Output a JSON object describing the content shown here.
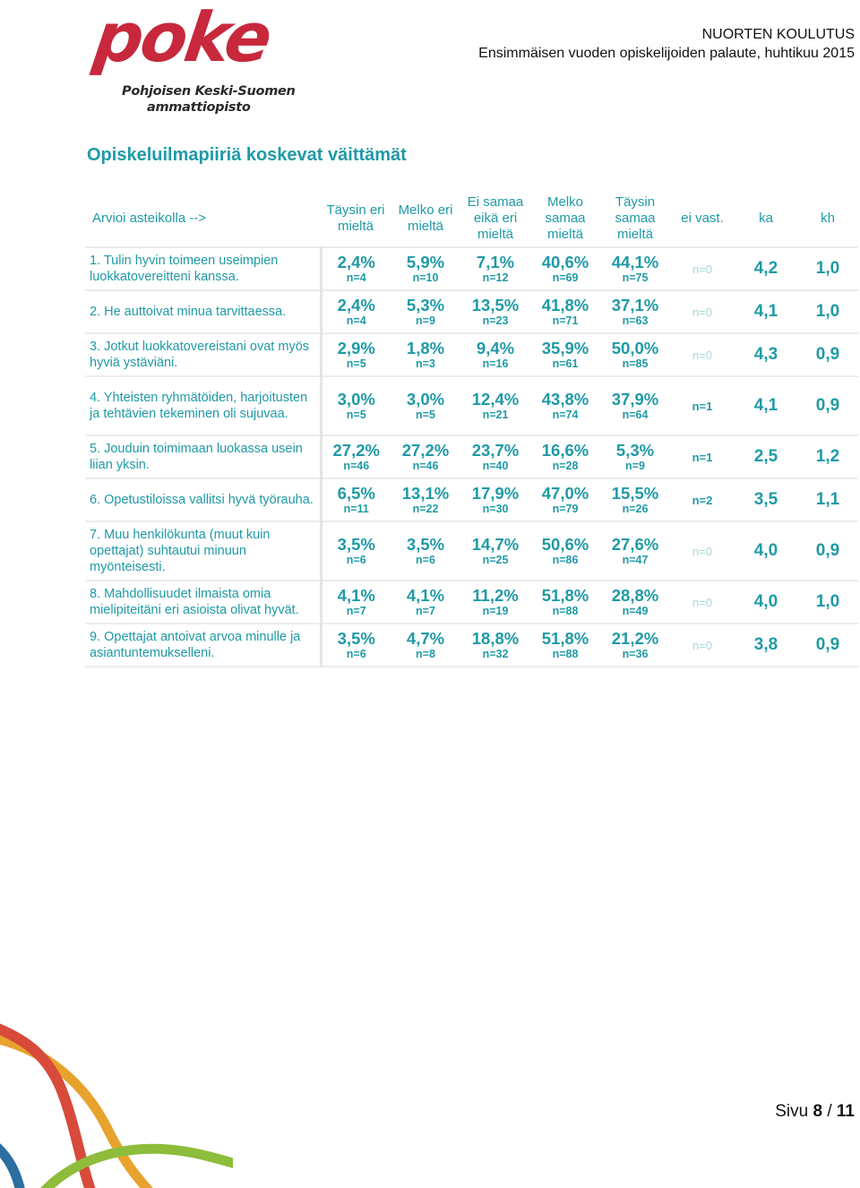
{
  "logo": {
    "word": "poke",
    "line1": "Pohjoisen Keski-Suomen",
    "line2": "ammattiopisto"
  },
  "header": {
    "title": "NUORTEN KOULUTUS",
    "subtitle": "Ensimmäisen vuoden opiskelijoiden palaute, huhtikuu 2015"
  },
  "section_title": "Opiskeluilmapiiriä koskevat väittämät",
  "table": {
    "columns": [
      "Arvioi asteikolla -->",
      "Täysin eri mieltä",
      "Melko eri mieltä",
      "Ei samaa eikä eri mieltä",
      "Melko samaa mieltä",
      "Täysin samaa mieltä",
      "ei vast.",
      "ka",
      "kh"
    ],
    "rows": [
      {
        "q": "1. Tulin hyvin toimeen useimpien luokkatovereitteni kanssa.",
        "c": [
          {
            "p": "2,4%",
            "n": "n=4"
          },
          {
            "p": "5,9%",
            "n": "n=10"
          },
          {
            "p": "7,1%",
            "n": "n=12"
          },
          {
            "p": "40,6%",
            "n": "n=69"
          },
          {
            "p": "44,1%",
            "n": "n=75"
          }
        ],
        "ev": "n=0",
        "ka": "4,2",
        "kh": "1,0"
      },
      {
        "q": "2. He auttoivat minua tarvittaessa.",
        "c": [
          {
            "p": "2,4%",
            "n": "n=4"
          },
          {
            "p": "5,3%",
            "n": "n=9"
          },
          {
            "p": "13,5%",
            "n": "n=23"
          },
          {
            "p": "41,8%",
            "n": "n=71"
          },
          {
            "p": "37,1%",
            "n": "n=63"
          }
        ],
        "ev": "n=0",
        "ka": "4,1",
        "kh": "1,0"
      },
      {
        "q": "3. Jotkut luokkatovereistani ovat myös hyviä ystäviäni.",
        "c": [
          {
            "p": "2,9%",
            "n": "n=5"
          },
          {
            "p": "1,8%",
            "n": "n=3"
          },
          {
            "p": "9,4%",
            "n": "n=16"
          },
          {
            "p": "35,9%",
            "n": "n=61"
          },
          {
            "p": "50,0%",
            "n": "n=85"
          }
        ],
        "ev": "n=0",
        "ka": "4,3",
        "kh": "0,9"
      },
      {
        "q": "4. Yhteisten ryhmätöiden, harjoitusten ja tehtävien tekeminen oli sujuvaa.",
        "c": [
          {
            "p": "3,0%",
            "n": "n=5"
          },
          {
            "p": "3,0%",
            "n": "n=5"
          },
          {
            "p": "12,4%",
            "n": "n=21"
          },
          {
            "p": "43,8%",
            "n": "n=74"
          },
          {
            "p": "37,9%",
            "n": "n=64"
          }
        ],
        "ev": "n=1",
        "ka": "4,1",
        "kh": "0,9"
      },
      {
        "q": "5. Jouduin toimimaan luokassa usein liian yksin.",
        "c": [
          {
            "p": "27,2%",
            "n": "n=46"
          },
          {
            "p": "27,2%",
            "n": "n=46"
          },
          {
            "p": "23,7%",
            "n": "n=40"
          },
          {
            "p": "16,6%",
            "n": "n=28"
          },
          {
            "p": "5,3%",
            "n": "n=9"
          }
        ],
        "ev": "n=1",
        "ka": "2,5",
        "kh": "1,2"
      },
      {
        "q": "6. Opetustiloissa vallitsi hyvä työrauha.",
        "c": [
          {
            "p": "6,5%",
            "n": "n=11"
          },
          {
            "p": "13,1%",
            "n": "n=22"
          },
          {
            "p": "17,9%",
            "n": "n=30"
          },
          {
            "p": "47,0%",
            "n": "n=79"
          },
          {
            "p": "15,5%",
            "n": "n=26"
          }
        ],
        "ev": "n=2",
        "ka": "3,5",
        "kh": "1,1"
      },
      {
        "q": "7. Muu henkilökunta (muut kuin opettajat) suhtautui minuun myönteisesti.",
        "c": [
          {
            "p": "3,5%",
            "n": "n=6"
          },
          {
            "p": "3,5%",
            "n": "n=6"
          },
          {
            "p": "14,7%",
            "n": "n=25"
          },
          {
            "p": "50,6%",
            "n": "n=86"
          },
          {
            "p": "27,6%",
            "n": "n=47"
          }
        ],
        "ev": "n=0",
        "ka": "4,0",
        "kh": "0,9"
      },
      {
        "q": "8. Mahdollisuudet ilmaista omia mielipiteitäni eri asioista olivat hyvät.",
        "c": [
          {
            "p": "4,1%",
            "n": "n=7"
          },
          {
            "p": "4,1%",
            "n": "n=7"
          },
          {
            "p": "11,2%",
            "n": "n=19"
          },
          {
            "p": "51,8%",
            "n": "n=88"
          },
          {
            "p": "28,8%",
            "n": "n=49"
          }
        ],
        "ev": "n=0",
        "ka": "4,0",
        "kh": "1,0"
      },
      {
        "q": "9. Opettajat antoivat arvoa minulle ja asiantuntemukselleni.",
        "c": [
          {
            "p": "3,5%",
            "n": "n=6"
          },
          {
            "p": "4,7%",
            "n": "n=8"
          },
          {
            "p": "18,8%",
            "n": "n=32"
          },
          {
            "p": "51,8%",
            "n": "n=88"
          },
          {
            "p": "21,2%",
            "n": "n=36"
          }
        ],
        "ev": "n=0",
        "ka": "3,8",
        "kh": "0,9"
      }
    ]
  },
  "footer": {
    "page_prefix": "Sivu",
    "page_current": "8",
    "page_sep": "/",
    "page_total": "11"
  },
  "colors": {
    "accent": "#1f9aa6",
    "brand_red": "#c8283c",
    "muted": "#a8d6db"
  }
}
